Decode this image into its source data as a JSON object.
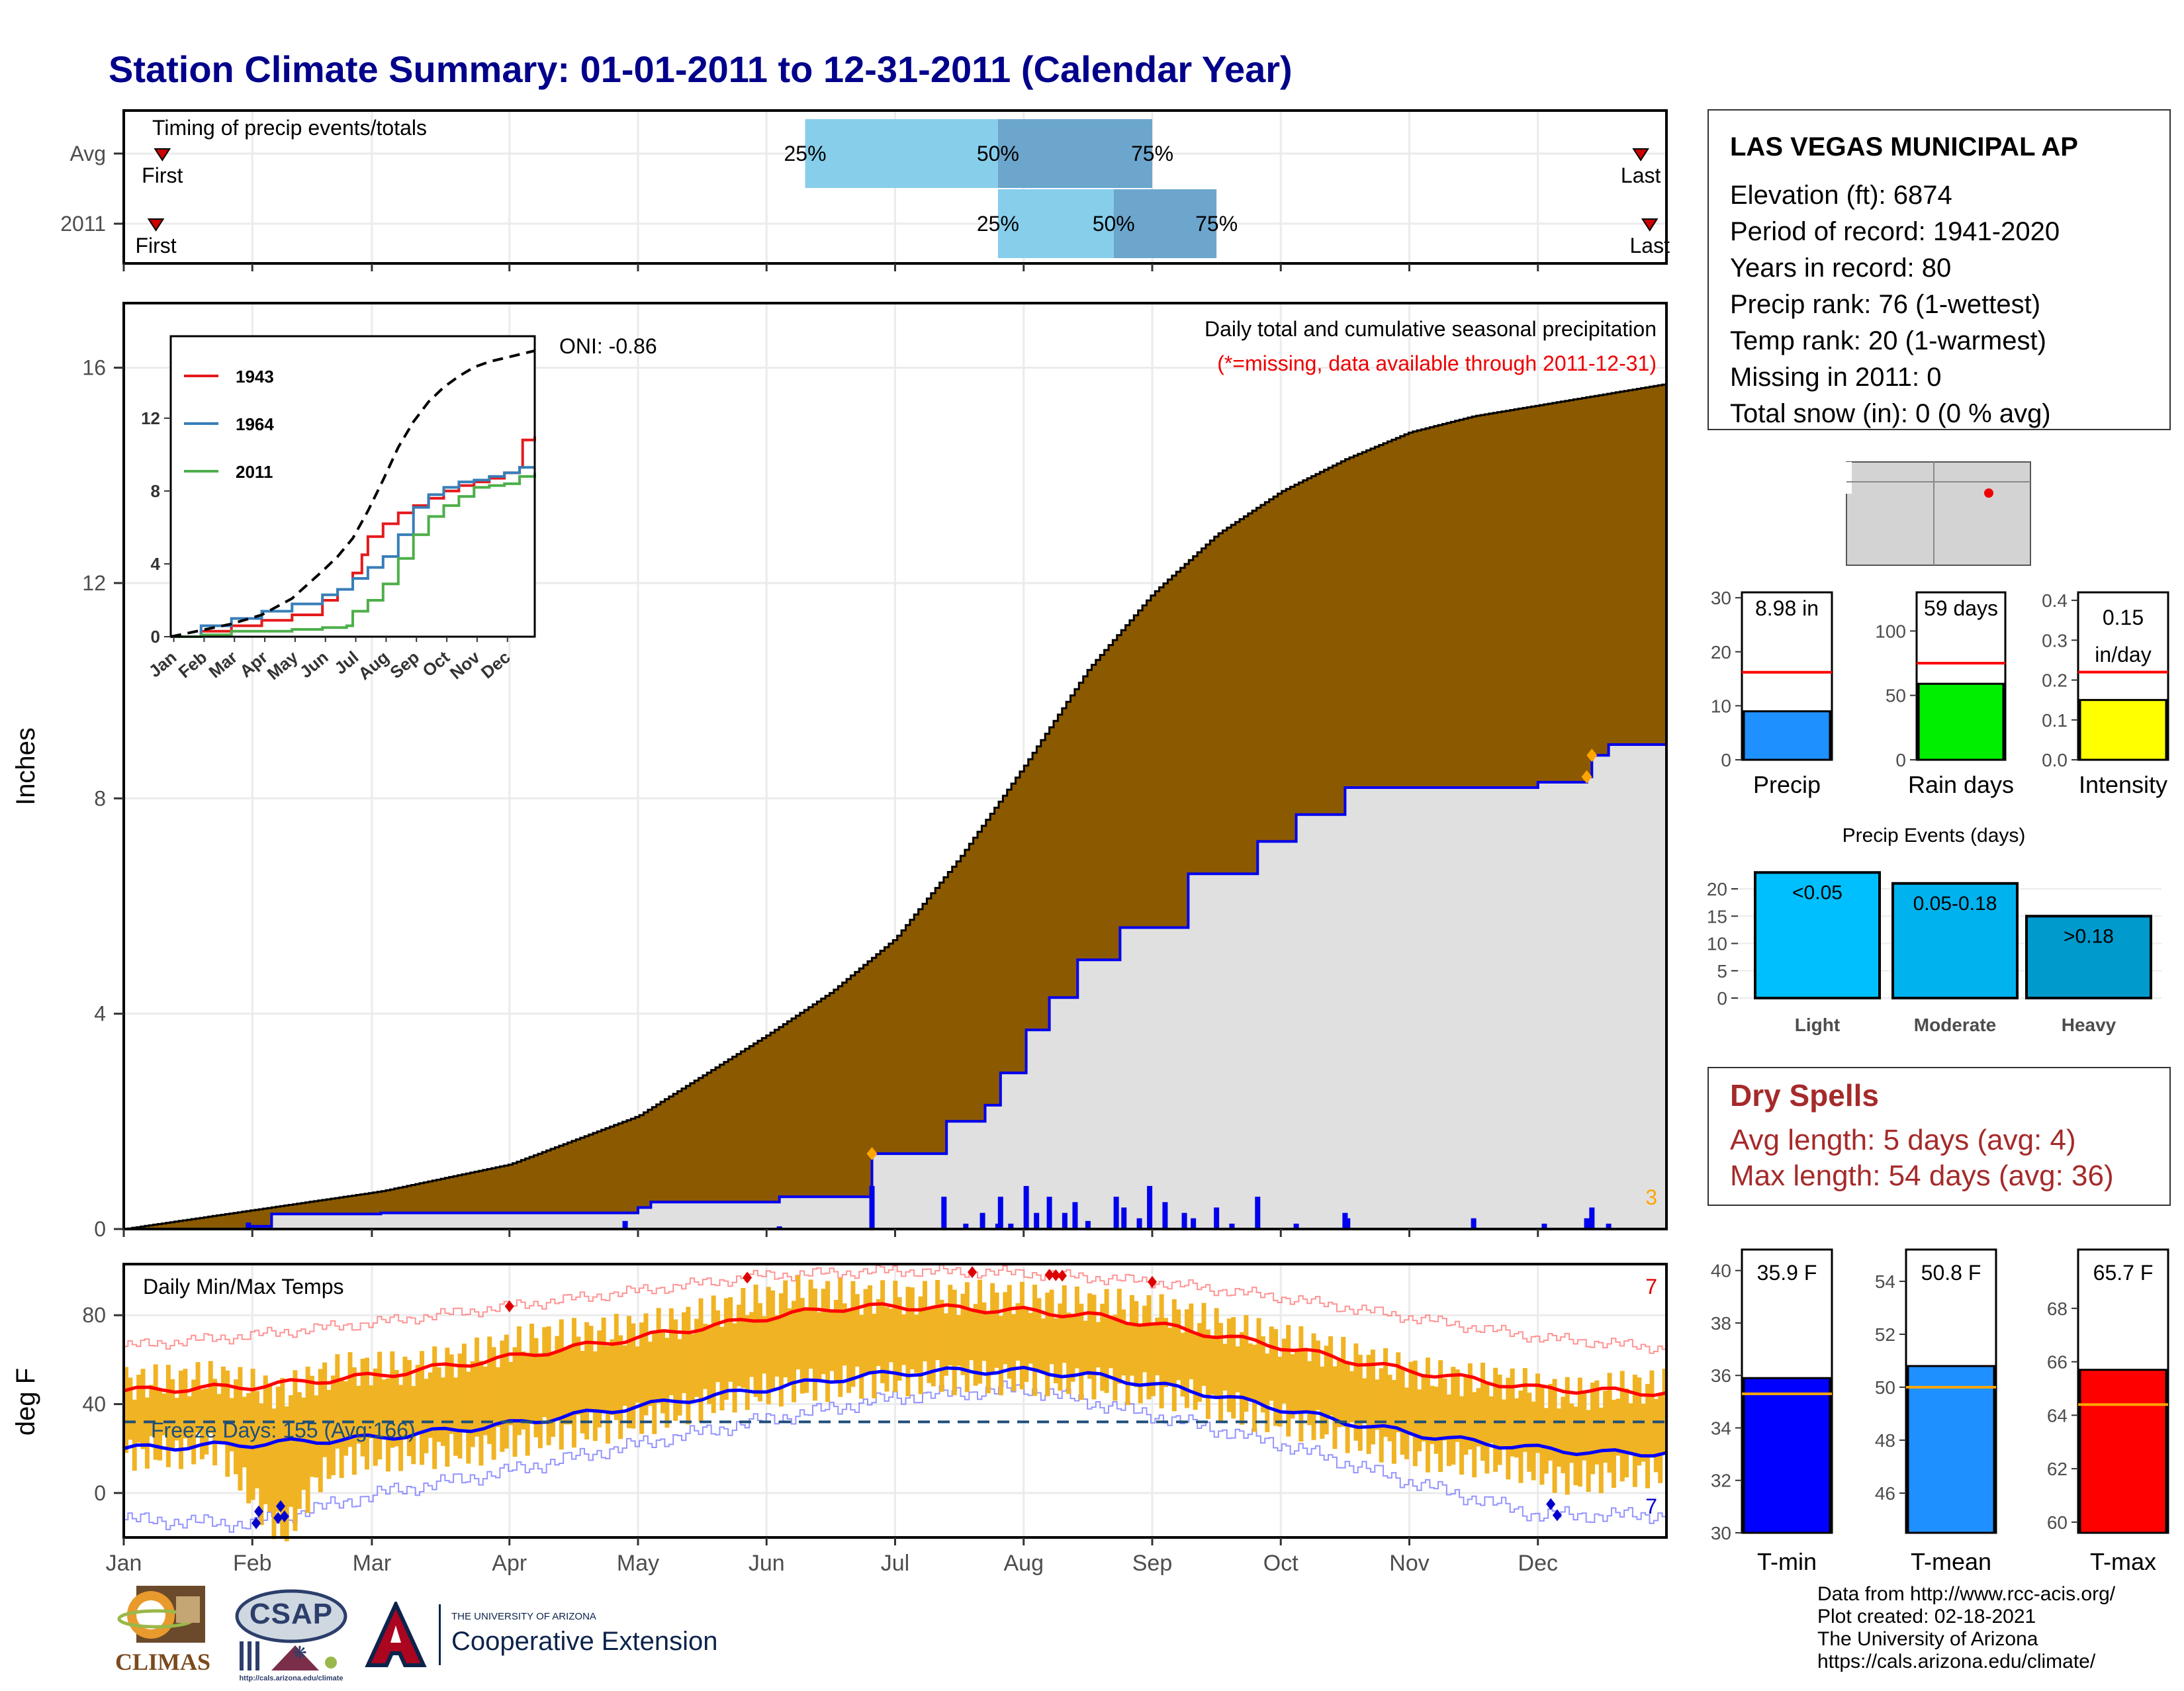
{
  "page": {
    "title": "Station Climate Summary: 01-01-2011 to 12-31-2011 (Calendar Year)"
  },
  "station": {
    "name": "LAS VEGAS MUNICIPAL AP",
    "lines": [
      "Elevation (ft): 6874",
      "Period of record: 1941-2020",
      "Years in record: 80",
      "Precip rank: 76 (1-wettest)",
      "Temp rank: 20 (1-warmest)",
      "Missing in 2011: 0",
      "Total snow (in): 0 (0 % avg)"
    ]
  },
  "dry_spells": {
    "title": "Dry Spells",
    "avg": "Avg length: 5 days (avg: 4)",
    "max": "Max length: 54 days (avg: 36)"
  },
  "credits": {
    "lines": [
      "Data from http://www.rcc-acis.org/",
      "Plot created: 02-18-2021",
      "The University of Arizona",
      "https://cals.arizona.edu/climate/"
    ]
  },
  "logos": {
    "climas": "CLIMAS",
    "csap": "CSAP",
    "csap_url": "http://cals.arizona.edu/climate",
    "ua_small": "THE UNIVERSITY OF ARIZONA",
    "ua_big": "Cooperative Extension"
  },
  "colors": {
    "title": "#00008b",
    "brown": "#8b5a00",
    "gray_fill": "#e0e0e0",
    "blue_line": "#0000ee",
    "orange": "#ffa500",
    "bar_light": "#87ceeb",
    "bar_dark": "#6ca6cd",
    "tmax_red": "#ff0000",
    "tmin_blue": "#0000ff",
    "temp_bar": "#f0b323"
  },
  "chart_data": [
    {
      "id": "timing",
      "type": "bar",
      "title": "Timing of precip events/totals",
      "rows": [
        {
          "label": "Avg",
          "first_month": 0.3,
          "last_month": 11.8,
          "p25": 5.3,
          "p50": 6.8,
          "p75": 8.0,
          "marks": [
            "First",
            "Last",
            "25%",
            "50%",
            "75%"
          ]
        },
        {
          "label": "2011",
          "first_month": 0.25,
          "last_month": 11.87,
          "p25": 6.8,
          "p50": 7.7,
          "p75": 8.5,
          "marks": [
            "First",
            "Last",
            "25%",
            "50%",
            "75%"
          ]
        }
      ]
    },
    {
      "id": "precip",
      "type": "area",
      "title": "Daily total and cumulative seasonal precipitation",
      "subtitle": "(*=missing, data available through 2011-12-31)",
      "oni": "ONI: -0.86",
      "ylabel": "Inches",
      "ylim": [
        0,
        17.2
      ],
      "yticks": [
        0,
        4,
        8,
        12,
        16
      ],
      "xticks": [
        "Jan",
        "Feb",
        "Mar",
        "Apr",
        "May",
        "Jun",
        "Jul",
        "Aug",
        "Sep",
        "Oct",
        "Nov",
        "Dec"
      ],
      "extreme_count": "3",
      "avg_cumulative": {
        "month": [
          0,
          1,
          2,
          3,
          4,
          5,
          5.5,
          6,
          6.5,
          7,
          7.5,
          8,
          8.5,
          9,
          9.5,
          10,
          10.5,
          11,
          11.5,
          12
        ],
        "inches": [
          0,
          0.35,
          0.7,
          1.2,
          2.1,
          3.6,
          4.4,
          5.4,
          6.9,
          8.6,
          10.4,
          11.8,
          12.9,
          13.7,
          14.3,
          14.8,
          15.1,
          15.3,
          15.5,
          15.7
        ]
      },
      "cumulative_2011": {
        "month": [
          0,
          0.97,
          1.15,
          2.0,
          3.0,
          3.9,
          4.0,
          4.1,
          5.1,
          5.8,
          5.82,
          6.38,
          6.4,
          6.68,
          6.7,
          6.8,
          6.82,
          7.0,
          7.02,
          7.17,
          7.2,
          7.4,
          7.42,
          7.72,
          7.75,
          8.25,
          8.28,
          8.8,
          8.82,
          9.1,
          9.12,
          9.45,
          9.5,
          10.5,
          11.0,
          11.05,
          11.38,
          11.42,
          11.55,
          12.0
        ],
        "inches": [
          0,
          0.05,
          0.28,
          0.3,
          0.3,
          0.3,
          0.4,
          0.5,
          0.6,
          0.6,
          1.4,
          1.4,
          2.0,
          2.0,
          2.3,
          2.3,
          2.9,
          2.9,
          3.7,
          3.7,
          4.3,
          4.3,
          5.0,
          5.0,
          5.6,
          5.6,
          6.6,
          6.6,
          7.2,
          7.2,
          7.7,
          7.7,
          8.2,
          8.2,
          8.3,
          8.3,
          8.4,
          8.8,
          9.0,
          9.0
        ]
      },
      "daily_bars": {
        "month": [
          0.97,
          3.9,
          5.1,
          5.82,
          6.38,
          6.55,
          6.68,
          6.8,
          6.82,
          6.9,
          7.02,
          7.1,
          7.2,
          7.32,
          7.4,
          7.5,
          7.72,
          7.78,
          7.9,
          7.98,
          8.1,
          8.25,
          8.32,
          8.5,
          8.62,
          8.82,
          9.12,
          9.5,
          9.52,
          10.5,
          11.05,
          11.38,
          11.42,
          11.55
        ],
        "inches": [
          0.12,
          0.15,
          0.05,
          0.8,
          0.6,
          0.1,
          0.3,
          0.1,
          0.6,
          0.1,
          0.8,
          0.3,
          0.6,
          0.3,
          0.5,
          0.15,
          0.6,
          0.4,
          0.2,
          0.8,
          0.5,
          0.3,
          0.2,
          0.4,
          0.1,
          0.6,
          0.1,
          0.3,
          0.2,
          0.2,
          0.1,
          0.2,
          0.4,
          0.1
        ]
      }
    },
    {
      "id": "inset",
      "type": "line",
      "yticks": [
        0,
        4,
        8,
        12
      ],
      "ylim": [
        0,
        16.5
      ],
      "xticks": [
        "Jan",
        "Feb",
        "Mar",
        "Apr",
        "May",
        "Jun",
        "Jul",
        "Aug",
        "Sep",
        "Oct",
        "Nov",
        "Dec"
      ],
      "series": [
        {
          "name": "1943",
          "color": "#e41a1c",
          "month": [
            0,
            1,
            2,
            3,
            4,
            5,
            5.5,
            6,
            6.3,
            6.5,
            7,
            7.5,
            8,
            8.5,
            9,
            9.5,
            10,
            10.5,
            11,
            11.5,
            11.6,
            12
          ],
          "inches": [
            0,
            0.3,
            0.6,
            0.9,
            1.2,
            2.0,
            2.6,
            3.5,
            4.5,
            5.5,
            6.2,
            6.8,
            7.2,
            7.6,
            8.0,
            8.3,
            8.5,
            8.7,
            9.0,
            9.3,
            10.8,
            11.0
          ]
        },
        {
          "name": "1964",
          "color": "#377eb8",
          "month": [
            0,
            1,
            2,
            3,
            4,
            5,
            5.5,
            6,
            6.5,
            7,
            7.5,
            8,
            8.5,
            9,
            9.5,
            10,
            10.5,
            11,
            11.5,
            12
          ],
          "inches": [
            0,
            0.6,
            1.0,
            1.4,
            1.8,
            2.3,
            2.6,
            3.2,
            3.8,
            4.4,
            5.6,
            7.1,
            7.8,
            8.2,
            8.5,
            8.6,
            8.8,
            9.0,
            9.3,
            9.3
          ]
        },
        {
          "name": "2011",
          "color": "#4daf4a",
          "month": [
            0,
            1,
            2,
            3,
            4,
            5,
            5.8,
            6,
            6.5,
            7,
            7.5,
            8,
            8.5,
            9,
            9.5,
            10,
            10.5,
            11,
            11.5,
            12
          ],
          "inches": [
            0,
            0.1,
            0.3,
            0.3,
            0.4,
            0.5,
            0.6,
            1.4,
            2.0,
            2.9,
            4.3,
            5.6,
            6.6,
            7.2,
            7.7,
            8.2,
            8.3,
            8.4,
            8.8,
            9.0
          ]
        },
        {
          "name": "avg",
          "color": "#000000",
          "dashed": true,
          "month": [
            0,
            1,
            2,
            3,
            4,
            5,
            5.5,
            6,
            6.5,
            7,
            7.5,
            8,
            8.5,
            9,
            9.5,
            10,
            10.5,
            11,
            11.5,
            12
          ],
          "inches": [
            0,
            0.35,
            0.7,
            1.2,
            2.1,
            3.6,
            4.4,
            5.4,
            6.9,
            8.6,
            10.4,
            11.8,
            12.9,
            13.7,
            14.3,
            14.8,
            15.1,
            15.3,
            15.5,
            15.7
          ]
        }
      ]
    },
    {
      "id": "temps",
      "type": "line",
      "title": "Daily Min/Max Temps",
      "ylabel": "deg F",
      "ylim": [
        -20,
        103
      ],
      "yticks": [
        0,
        40,
        80
      ],
      "xticks": [
        "Jan",
        "Feb",
        "Mar",
        "Apr",
        "May",
        "Jun",
        "Jul",
        "Aug",
        "Sep",
        "Oct",
        "Nov",
        "Dec"
      ],
      "freeze_label": "Freeze Days: 155 (Avg:166)",
      "freeze_temp": 32,
      "hot_count": "7",
      "cold_count": "7",
      "avg_max": {
        "month": [
          0,
          1,
          2,
          3,
          4,
          5,
          5.5,
          6,
          6.5,
          7,
          7.5,
          8,
          8.5,
          9,
          9.5,
          10,
          10.5,
          11,
          11.5,
          12
        ],
        "temp": [
          46,
          48,
          53,
          61,
          70,
          79,
          83,
          84,
          83,
          82,
          80,
          76,
          71,
          66,
          60,
          55,
          51,
          47,
          46,
          45
        ]
      },
      "avg_min": {
        "month": [
          0,
          1,
          2,
          3,
          4,
          5,
          5.5,
          6,
          6.5,
          7,
          7.5,
          8,
          8.5,
          9,
          9.5,
          10,
          10.5,
          11,
          11.5,
          12
        ],
        "temp": [
          20,
          22,
          25,
          31,
          39,
          47,
          51,
          54,
          55,
          55,
          53,
          49,
          44,
          38,
          32,
          27,
          23,
          20,
          18,
          18
        ]
      },
      "rec_max": {
        "month": [
          0,
          1,
          2,
          3,
          4,
          5,
          6,
          7,
          8,
          9,
          10,
          11,
          12
        ],
        "temp": [
          66,
          71,
          77,
          84,
          91,
          98,
          100,
          99,
          95,
          88,
          79,
          70,
          65
        ]
      },
      "rec_min": {
        "month": [
          0,
          1,
          2,
          3,
          4,
          5,
          6,
          7,
          8,
          9,
          10,
          11,
          12
        ],
        "temp": [
          -12,
          -14,
          0,
          10,
          22,
          33,
          43,
          47,
          35,
          22,
          5,
          -10,
          -10
        ]
      },
      "daily_ranges": {
        "month": [
          0.25,
          0.75,
          1.0,
          1.25,
          1.5,
          1.75,
          2.25,
          2.75,
          3.25,
          3.75,
          4.25,
          4.75,
          5.25,
          5.75,
          6.25,
          6.75,
          7.25,
          7.75,
          8.25,
          8.75,
          9.25,
          9.75,
          10.25,
          10.75,
          11.25,
          11.75
        ],
        "low": [
          22,
          24,
          2,
          -15,
          10,
          20,
          22,
          24,
          30,
          34,
          40,
          48,
          52,
          54,
          56,
          56,
          55,
          52,
          48,
          40,
          34,
          26,
          20,
          18,
          10,
          14
        ],
        "high": [
          50,
          52,
          48,
          45,
          52,
          56,
          56,
          62,
          70,
          72,
          76,
          84,
          90,
          88,
          88,
          88,
          86,
          84,
          80,
          72,
          66,
          58,
          52,
          50,
          44,
          48
        ]
      },
      "record_highs": [
        3.0,
        4.85,
        6.6,
        7.2,
        7.25,
        7.3,
        8.0
      ],
      "record_lows": [
        1.03,
        1.05,
        1.2,
        1.22,
        1.25,
        11.1,
        11.15
      ]
    },
    {
      "id": "precip_gauges",
      "type": "bar",
      "panels": [
        {
          "label": "Precip",
          "value_text": "8.98 in",
          "value": 8.98,
          "avg": 16.2,
          "ylim": [
            0,
            31
          ],
          "yticks": [
            0,
            10,
            20,
            30
          ],
          "color": "#1e90ff"
        },
        {
          "label": "Rain days",
          "value_text": "59 days",
          "value": 59,
          "avg": 75,
          "ylim": [
            0,
            130
          ],
          "yticks": [
            0,
            50,
            100
          ],
          "color": "#00ee00"
        },
        {
          "label": "Intensity",
          "value_text": "0.15 in/day",
          "value": 0.15,
          "avg": 0.22,
          "ylim": [
            0,
            0.42
          ],
          "yticks": [
            0.0,
            0.1,
            0.2,
            0.3,
            0.4
          ],
          "color": "#ffff00"
        }
      ]
    },
    {
      "id": "precip_events",
      "type": "bar",
      "title": "Precip Events (days)",
      "categories": [
        "Light",
        "Moderate",
        "Heavy"
      ],
      "bar_labels": [
        "<0.05",
        "0.05-0.18",
        ">0.18"
      ],
      "values": [
        23,
        21,
        15
      ],
      "ylim": [
        0,
        24
      ],
      "yticks": [
        0,
        5,
        10,
        15,
        20
      ],
      "colors": [
        "#00bfff",
        "#00b2ee",
        "#009acd"
      ]
    },
    {
      "id": "temp_gauges",
      "type": "bar",
      "panels": [
        {
          "label": "T-min",
          "value_text": "35.9 F",
          "value": 35.9,
          "avg": 35.3,
          "ylim": [
            30,
            40.8
          ],
          "yticks": [
            30,
            32,
            34,
            36,
            38,
            40
          ],
          "color": "#0000ff"
        },
        {
          "label": "T-mean",
          "value_text": "50.8 F",
          "value": 50.8,
          "avg": 50.0,
          "ylim": [
            44.5,
            55.2
          ],
          "yticks": [
            46,
            48,
            50,
            52,
            54
          ],
          "color": "#1e90ff"
        },
        {
          "label": "T-max",
          "value_text": "65.7 F",
          "value": 65.7,
          "avg": 64.4,
          "ylim": [
            59.6,
            70.2
          ],
          "yticks": [
            60,
            62,
            64,
            66,
            68
          ],
          "color": "#ff0000"
        }
      ]
    }
  ]
}
